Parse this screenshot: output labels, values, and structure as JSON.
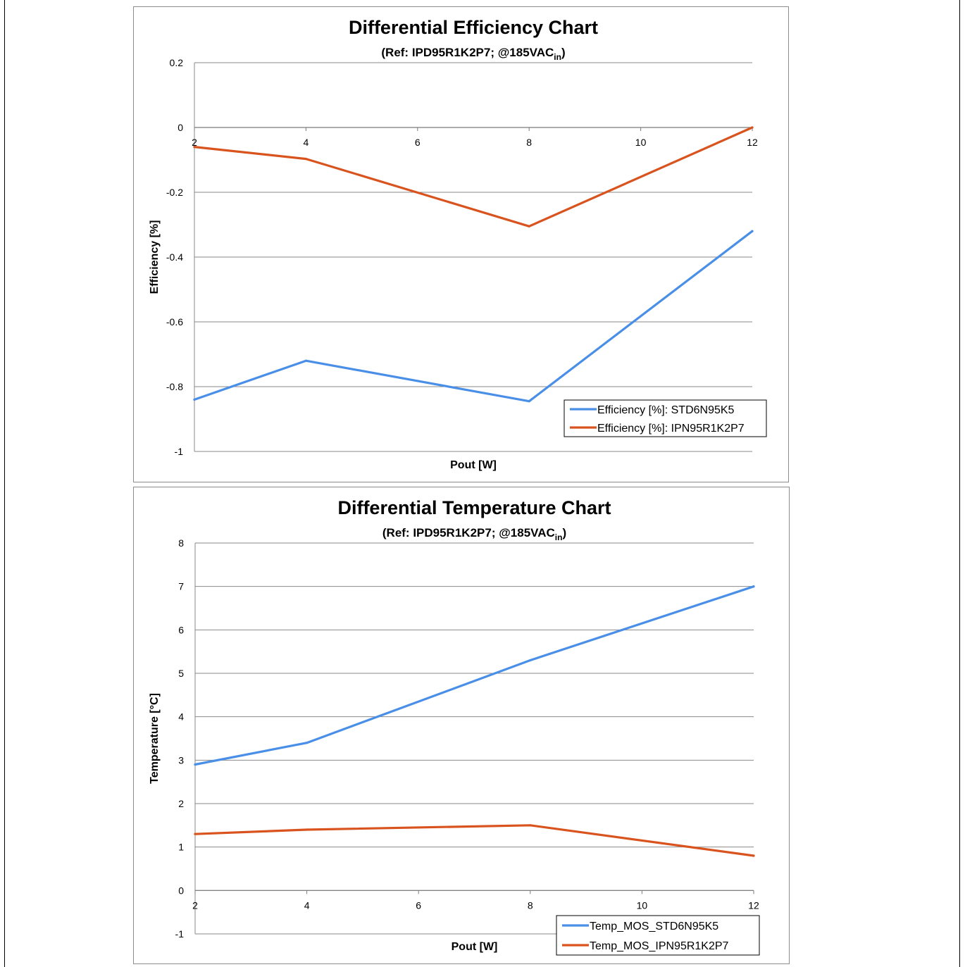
{
  "chart_data": [
    {
      "type": "line",
      "title": "Differential Efficiency Chart",
      "subtitle": {
        "main": "(Ref: IPD95R1K2P7; @185VAC",
        "sub": "in",
        "tail": ")"
      },
      "xlabel": "Pout [W]",
      "ylabel": "Efficiency [%]",
      "xlim": [
        2,
        12
      ],
      "ylim": [
        -1,
        0.2
      ],
      "xticks": [
        2,
        4,
        6,
        8,
        10,
        12
      ],
      "xtick_labels": [
        "2",
        "4",
        "6",
        "8",
        "10",
        "12"
      ],
      "yticks": [
        0.2,
        0,
        -0.2,
        -0.4,
        -0.6,
        -0.8,
        -1
      ],
      "ytick_labels": [
        "0.2",
        "0",
        "-0.2",
        "-0.4",
        "-0.6",
        "-0.8",
        "-1"
      ],
      "x_axis_crosses_at": 0,
      "grid": true,
      "legend_position": "bottom-right",
      "series": [
        {
          "name": "Efficiency [%]: STD6N95K5",
          "color": "#4a8fe7",
          "x": [
            2,
            4,
            8,
            12
          ],
          "values": [
            -0.84,
            -0.72,
            -0.845,
            -0.32
          ]
        },
        {
          "name": "Efficiency [%]: IPN95R1K2P7",
          "color": "#d9531e",
          "x": [
            2,
            4,
            8,
            12
          ],
          "values": [
            -0.06,
            -0.097,
            -0.305,
            0.0
          ]
        }
      ]
    },
    {
      "type": "line",
      "title": "Differential Temperature Chart",
      "subtitle": {
        "main": "(Ref: IPD95R1K2P7; @185VAC",
        "sub": "in",
        "tail": ")"
      },
      "xlabel": "Pout [W]",
      "ylabel": "Temperature [°C]",
      "xlim": [
        2,
        12
      ],
      "ylim": [
        -1,
        8
      ],
      "xticks": [
        2,
        4,
        6,
        8,
        10,
        12
      ],
      "xtick_labels": [
        "2",
        "4",
        "6",
        "8",
        "10",
        "12"
      ],
      "yticks": [
        8,
        7,
        6,
        5,
        4,
        3,
        2,
        1,
        0,
        -1
      ],
      "ytick_labels": [
        "8",
        "7",
        "6",
        "5",
        "4",
        "3",
        "2",
        "1",
        "0",
        "-1"
      ],
      "x_axis_crosses_at": 0,
      "grid": true,
      "legend_position": "bottom-right",
      "series": [
        {
          "name": "Temp_MOS_STD6N95K5",
          "color": "#4a8fe7",
          "x": [
            2,
            4,
            8,
            12
          ],
          "values": [
            2.9,
            3.4,
            5.3,
            7.0
          ]
        },
        {
          "name": "Temp_MOS_IPN95R1K2P7",
          "color": "#d9531e",
          "x": [
            2,
            4,
            8,
            12
          ],
          "values": [
            1.3,
            1.4,
            1.5,
            0.8
          ]
        }
      ]
    }
  ]
}
